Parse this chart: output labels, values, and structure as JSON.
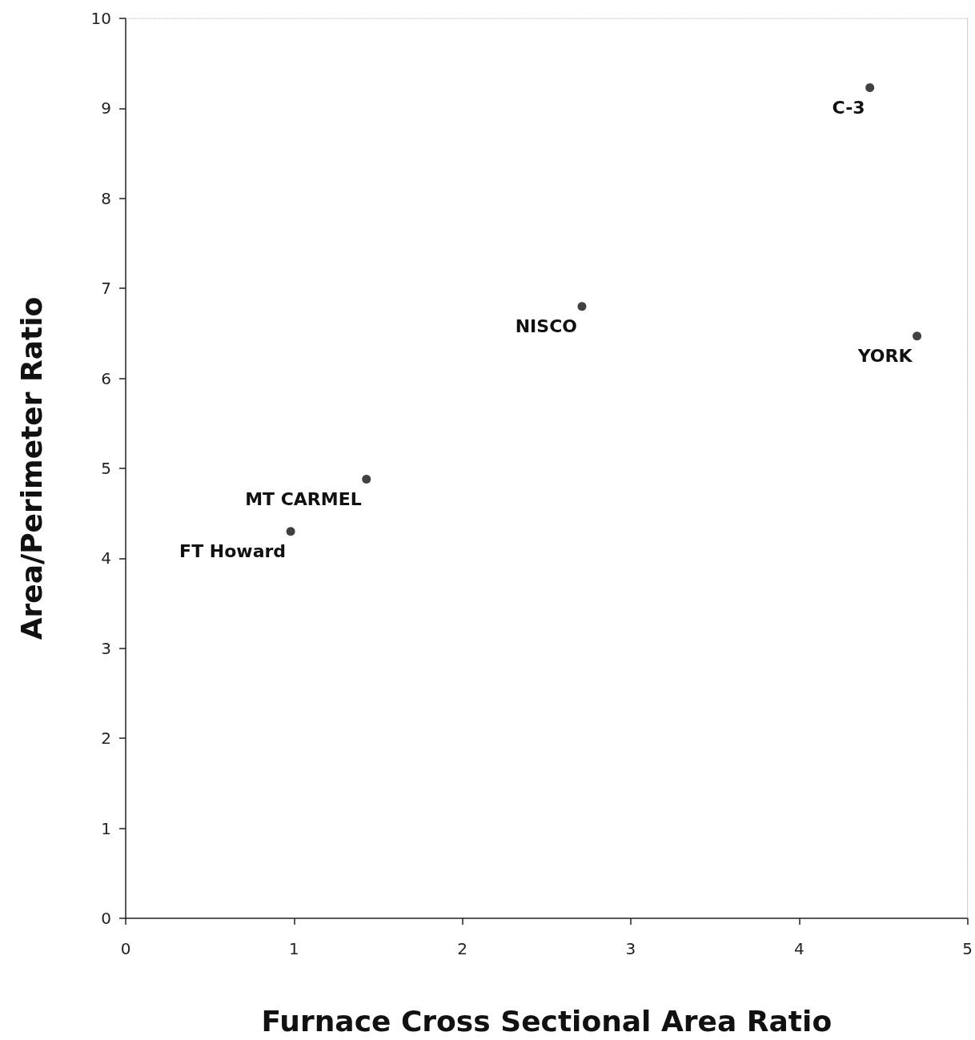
{
  "chart_data": {
    "type": "scatter",
    "xlabel": "Furnace Cross Sectional Area Ratio",
    "ylabel": "Area/Perimeter Ratio",
    "x": [
      0.98,
      1.43,
      2.71,
      4.42,
      4.7
    ],
    "series": [
      {
        "color": "#111111",
        "values": [
          4.3,
          4.88,
          6.8,
          9.23,
          6.47
        ]
      }
    ],
    "xlim": [
      0,
      5
    ],
    "xticks": [
      0,
      1,
      2,
      3,
      4,
      5
    ],
    "ylim": [
      0,
      10
    ],
    "yticks": [
      0,
      1,
      2,
      3,
      4,
      5,
      6,
      7,
      8,
      9,
      10
    ],
    "grid": false,
    "marker": "circle",
    "annotations": [
      {
        "text": "FT Howard",
        "x": 0.98,
        "y": 4.3
      },
      {
        "text": "MT CARMEL",
        "x": 1.43,
        "y": 4.88
      },
      {
        "text": "NISCO",
        "x": 2.71,
        "y": 6.8
      },
      {
        "text": "C-3",
        "x": 4.42,
        "y": 9.23
      },
      {
        "text": "YORK",
        "x": 4.7,
        "y": 6.47
      }
    ]
  }
}
